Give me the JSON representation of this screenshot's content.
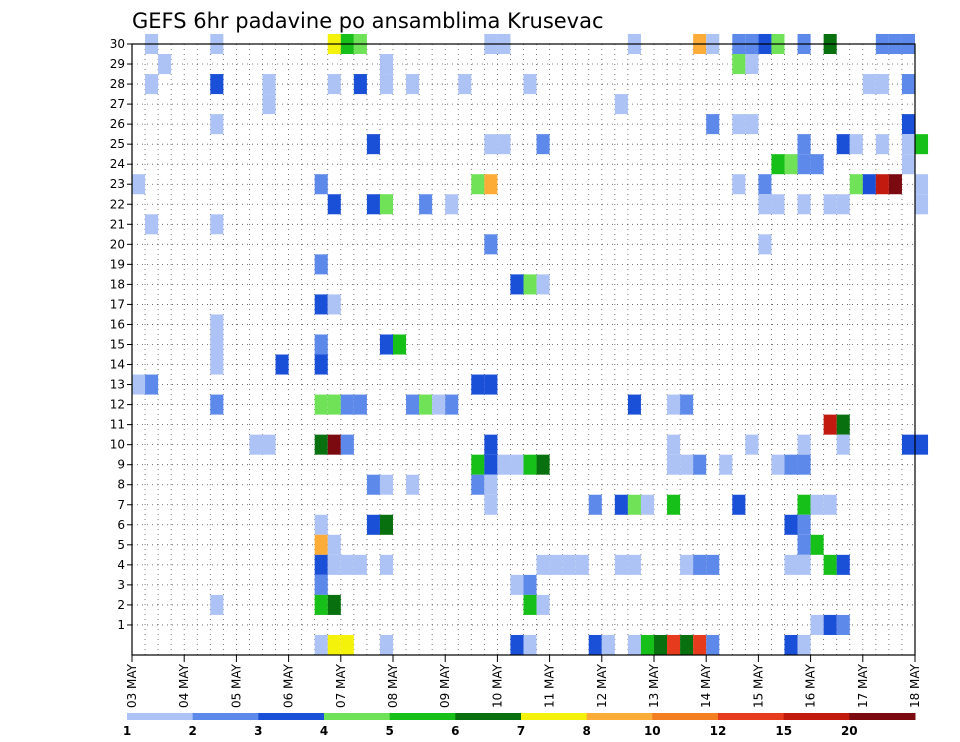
{
  "chart_data": {
    "type": "heatmap",
    "title": "GEFS 6hr padavine po ansamblima Krusevac",
    "y_label": "",
    "x_label": "",
    "y_ticks": [
      "1",
      "2",
      "3",
      "4",
      "5",
      "6",
      "7",
      "8",
      "9",
      "10",
      "11",
      "12",
      "13",
      "14",
      "15",
      "16",
      "17",
      "18",
      "19",
      "20",
      "21",
      "22",
      "23",
      "24",
      "25",
      "26",
      "27",
      "28",
      "29",
      "30"
    ],
    "x_ticks": [
      "03 MAY",
      "04 MAY",
      "05 MAY",
      "06 MAY",
      "07 MAY",
      "08 MAY",
      "09 MAY",
      "10 MAY",
      "11 MAY",
      "12 MAY",
      "13 MAY",
      "14 MAY",
      "15 MAY",
      "16 MAY",
      "17 MAY",
      "18 MAY"
    ],
    "grid": "dotted",
    "legend": {
      "placement": "bottom",
      "thresholds": [
        "1",
        "2",
        "3",
        "4",
        "5",
        "6",
        "7",
        "8",
        "10",
        "12",
        "15",
        "20"
      ],
      "colors": [
        "#aec3f5",
        "#5d89ea",
        "#1a4fd8",
        "#6fe257",
        "#17c019",
        "#08700f",
        "#f4f20b",
        "#fdad37",
        "#f47f20",
        "#e63b1c",
        "#c31a10",
        "#7a0a10"
      ]
    },
    "cells_note": "each cell: [x in days since 03 MAY 00Z (6h steps), member row (0 = unlabeled bottom row), colour class 0-11]",
    "cells": [
      [
        0.25,
        30,
        0
      ],
      [
        1.5,
        30,
        0
      ],
      [
        3.75,
        30,
        6
      ],
      [
        4.0,
        30,
        4
      ],
      [
        4.25,
        30,
        3
      ],
      [
        6.75,
        30,
        0
      ],
      [
        7.0,
        30,
        0
      ],
      [
        9.5,
        30,
        0
      ],
      [
        10.75,
        30,
        7
      ],
      [
        11.0,
        30,
        0
      ],
      [
        11.5,
        30,
        1
      ],
      [
        11.75,
        30,
        1
      ],
      [
        12.0,
        30,
        2
      ],
      [
        12.25,
        30,
        3
      ],
      [
        12.75,
        30,
        1
      ],
      [
        13.25,
        30,
        5
      ],
      [
        14.25,
        30,
        1
      ],
      [
        14.5,
        30,
        1
      ],
      [
        14.75,
        30,
        1
      ],
      [
        0.5,
        29,
        0
      ],
      [
        4.75,
        29,
        0
      ],
      [
        11.5,
        29,
        3
      ],
      [
        11.75,
        29,
        0
      ],
      [
        0.25,
        28,
        0
      ],
      [
        1.5,
        28,
        2
      ],
      [
        2.5,
        28,
        0
      ],
      [
        3.75,
        28,
        0
      ],
      [
        4.25,
        28,
        2
      ],
      [
        4.75,
        28,
        0
      ],
      [
        5.25,
        28,
        0
      ],
      [
        6.25,
        28,
        0
      ],
      [
        7.5,
        28,
        0
      ],
      [
        14.0,
        28,
        0
      ],
      [
        14.25,
        28,
        0
      ],
      [
        14.75,
        28,
        1
      ],
      [
        2.5,
        27,
        0
      ],
      [
        9.25,
        27,
        0
      ],
      [
        1.5,
        26,
        0
      ],
      [
        11.0,
        26,
        1
      ],
      [
        11.5,
        26,
        0
      ],
      [
        11.75,
        26,
        0
      ],
      [
        14.75,
        26,
        2
      ],
      [
        4.5,
        25,
        2
      ],
      [
        6.75,
        25,
        0
      ],
      [
        7.0,
        25,
        0
      ],
      [
        7.75,
        25,
        1
      ],
      [
        12.75,
        25,
        1
      ],
      [
        13.5,
        25,
        2
      ],
      [
        13.75,
        25,
        0
      ],
      [
        14.25,
        25,
        0
      ],
      [
        14.75,
        25,
        0
      ],
      [
        15.0,
        25,
        4
      ],
      [
        12.25,
        24,
        4
      ],
      [
        12.5,
        24,
        3
      ],
      [
        12.75,
        24,
        1
      ],
      [
        13.0,
        24,
        1
      ],
      [
        14.75,
        24,
        0
      ],
      [
        0.0,
        23,
        0
      ],
      [
        3.5,
        23,
        1
      ],
      [
        6.5,
        23,
        3
      ],
      [
        6.75,
        23,
        7
      ],
      [
        11.5,
        23,
        0
      ],
      [
        12.0,
        23,
        1
      ],
      [
        13.75,
        23,
        3
      ],
      [
        14.0,
        23,
        2
      ],
      [
        14.25,
        23,
        10
      ],
      [
        14.5,
        23,
        11
      ],
      [
        15.0,
        23,
        0
      ],
      [
        3.75,
        22,
        2
      ],
      [
        4.5,
        22,
        2
      ],
      [
        4.75,
        22,
        3
      ],
      [
        5.5,
        22,
        1
      ],
      [
        6.0,
        22,
        0
      ],
      [
        12.0,
        22,
        0
      ],
      [
        12.25,
        22,
        0
      ],
      [
        12.75,
        22,
        0
      ],
      [
        13.25,
        22,
        0
      ],
      [
        13.5,
        22,
        0
      ],
      [
        15.0,
        22,
        0
      ],
      [
        0.25,
        21,
        0
      ],
      [
        1.5,
        21,
        0
      ],
      [
        6.75,
        20,
        1
      ],
      [
        12.0,
        20,
        0
      ],
      [
        3.5,
        19,
        1
      ],
      [
        7.25,
        18,
        2
      ],
      [
        7.5,
        18,
        3
      ],
      [
        7.75,
        18,
        0
      ],
      [
        3.5,
        17,
        2
      ],
      [
        3.75,
        17,
        0
      ],
      [
        1.5,
        16,
        0
      ],
      [
        1.5,
        15,
        0
      ],
      [
        3.5,
        15,
        1
      ],
      [
        4.75,
        15,
        2
      ],
      [
        5.0,
        15,
        4
      ],
      [
        1.5,
        14,
        0
      ],
      [
        2.75,
        14,
        2
      ],
      [
        3.5,
        14,
        2
      ],
      [
        0.0,
        13,
        0
      ],
      [
        0.25,
        13,
        1
      ],
      [
        6.5,
        13,
        2
      ],
      [
        6.75,
        13,
        2
      ],
      [
        1.5,
        12,
        1
      ],
      [
        3.5,
        12,
        3
      ],
      [
        3.75,
        12,
        3
      ],
      [
        4.0,
        12,
        1
      ],
      [
        4.25,
        12,
        1
      ],
      [
        5.25,
        12,
        1
      ],
      [
        5.5,
        12,
        3
      ],
      [
        5.75,
        12,
        0
      ],
      [
        6.0,
        12,
        1
      ],
      [
        9.5,
        12,
        2
      ],
      [
        10.25,
        12,
        0
      ],
      [
        10.5,
        12,
        1
      ],
      [
        13.25,
        11,
        10
      ],
      [
        13.5,
        11,
        5
      ],
      [
        2.25,
        10,
        0
      ],
      [
        2.5,
        10,
        0
      ],
      [
        3.5,
        10,
        5
      ],
      [
        3.75,
        10,
        11
      ],
      [
        4.0,
        10,
        1
      ],
      [
        6.75,
        10,
        2
      ],
      [
        10.25,
        10,
        0
      ],
      [
        11.75,
        10,
        0
      ],
      [
        12.75,
        10,
        0
      ],
      [
        13.5,
        10,
        0
      ],
      [
        14.75,
        10,
        2
      ],
      [
        15.0,
        10,
        2
      ],
      [
        6.5,
        9,
        4
      ],
      [
        6.75,
        9,
        2
      ],
      [
        7.0,
        9,
        0
      ],
      [
        7.25,
        9,
        0
      ],
      [
        7.5,
        9,
        4
      ],
      [
        7.75,
        9,
        5
      ],
      [
        10.25,
        9,
        0
      ],
      [
        10.5,
        9,
        0
      ],
      [
        10.75,
        9,
        1
      ],
      [
        11.25,
        9,
        0
      ],
      [
        12.25,
        9,
        0
      ],
      [
        12.5,
        9,
        1
      ],
      [
        12.75,
        9,
        1
      ],
      [
        4.5,
        8,
        1
      ],
      [
        4.75,
        8,
        0
      ],
      [
        5.25,
        8,
        0
      ],
      [
        6.5,
        8,
        1
      ],
      [
        6.75,
        8,
        0
      ],
      [
        6.75,
        7,
        0
      ],
      [
        8.75,
        7,
        1
      ],
      [
        9.25,
        7,
        2
      ],
      [
        9.5,
        7,
        3
      ],
      [
        9.75,
        7,
        0
      ],
      [
        10.25,
        7,
        4
      ],
      [
        11.5,
        7,
        2
      ],
      [
        12.75,
        7,
        4
      ],
      [
        13.0,
        7,
        0
      ],
      [
        13.25,
        7,
        0
      ],
      [
        3.5,
        6,
        0
      ],
      [
        4.5,
        6,
        2
      ],
      [
        4.75,
        6,
        5
      ],
      [
        12.5,
        6,
        2
      ],
      [
        12.75,
        6,
        1
      ],
      [
        3.5,
        5,
        7
      ],
      [
        3.75,
        5,
        0
      ],
      [
        12.75,
        5,
        1
      ],
      [
        13.0,
        5,
        4
      ],
      [
        3.5,
        4,
        2
      ],
      [
        3.75,
        4,
        0
      ],
      [
        4.0,
        4,
        0
      ],
      [
        4.25,
        4,
        0
      ],
      [
        4.75,
        4,
        0
      ],
      [
        7.75,
        4,
        0
      ],
      [
        8.0,
        4,
        0
      ],
      [
        8.25,
        4,
        0
      ],
      [
        8.5,
        4,
        0
      ],
      [
        9.25,
        4,
        0
      ],
      [
        9.5,
        4,
        0
      ],
      [
        10.5,
        4,
        0
      ],
      [
        10.75,
        4,
        1
      ],
      [
        11.0,
        4,
        1
      ],
      [
        12.5,
        4,
        0
      ],
      [
        12.75,
        4,
        0
      ],
      [
        13.25,
        4,
        4
      ],
      [
        13.5,
        4,
        2
      ],
      [
        3.5,
        3,
        1
      ],
      [
        7.25,
        3,
        0
      ],
      [
        7.5,
        3,
        1
      ],
      [
        1.5,
        2,
        0
      ],
      [
        3.5,
        2,
        4
      ],
      [
        3.75,
        2,
        5
      ],
      [
        7.5,
        2,
        4
      ],
      [
        7.75,
        2,
        0
      ],
      [
        13.0,
        1,
        0
      ],
      [
        13.25,
        1,
        2
      ],
      [
        13.5,
        1,
        1
      ],
      [
        3.5,
        0,
        0
      ],
      [
        3.75,
        0,
        6
      ],
      [
        4.0,
        0,
        6
      ],
      [
        4.75,
        0,
        0
      ],
      [
        7.25,
        0,
        2
      ],
      [
        7.5,
        0,
        0
      ],
      [
        8.75,
        0,
        2
      ],
      [
        9.0,
        0,
        0
      ],
      [
        9.5,
        0,
        0
      ],
      [
        9.75,
        0,
        4
      ],
      [
        10.0,
        0,
        5
      ],
      [
        10.25,
        0,
        9
      ],
      [
        10.5,
        0,
        5
      ],
      [
        10.75,
        0,
        9
      ],
      [
        11.0,
        0,
        1
      ],
      [
        12.5,
        0,
        2
      ],
      [
        12.75,
        0,
        0
      ]
    ]
  }
}
